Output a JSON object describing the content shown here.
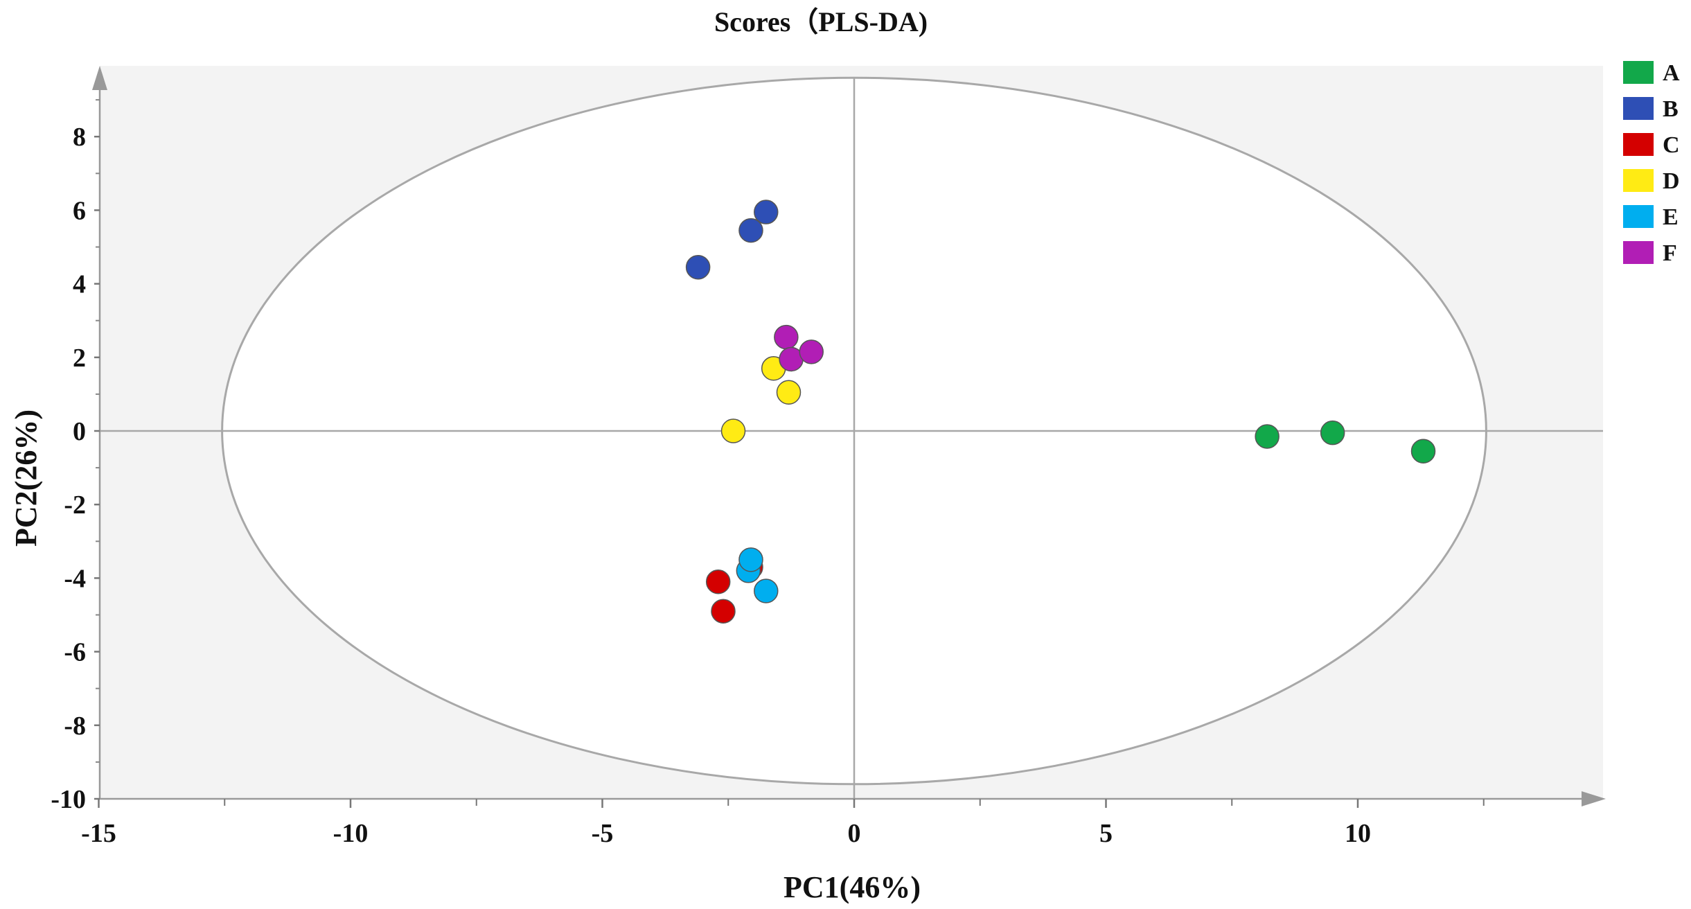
{
  "chart_data": {
    "type": "scatter",
    "title": "Scores（PLS-DA)",
    "xlabel": "PC1(46%)",
    "ylabel": "PC2(26%)",
    "xlim": [
      -15,
      15
    ],
    "ylim": [
      -10,
      10
    ],
    "x_ticks": [
      -15,
      -10,
      -5,
      0,
      5,
      10
    ],
    "y_ticks": [
      8,
      6,
      4,
      2,
      0,
      -2,
      -4,
      -6,
      -8,
      -10
    ],
    "grid": false,
    "legend_position": "right",
    "ellipse": {
      "center": [
        0,
        0
      ],
      "rx": 12.55,
      "ry": 9.6
    },
    "series": [
      {
        "name": "A",
        "color": "#12A84A",
        "points": [
          [
            8.2,
            -0.15
          ],
          [
            9.5,
            -0.05
          ],
          [
            11.3,
            -0.55
          ]
        ]
      },
      {
        "name": "B",
        "color": "#2E4FB5",
        "points": [
          [
            -3.1,
            4.45
          ],
          [
            -2.05,
            5.45
          ],
          [
            -1.75,
            5.95
          ]
        ]
      },
      {
        "name": "C",
        "color": "#D40000",
        "points": [
          [
            -2.7,
            -4.1
          ],
          [
            -2.6,
            -4.9
          ],
          [
            -2.05,
            -3.7
          ]
        ]
      },
      {
        "name": "D",
        "color": "#FFEB14",
        "points": [
          [
            -2.4,
            0.0
          ],
          [
            -1.6,
            1.7
          ],
          [
            -1.3,
            1.05
          ]
        ]
      },
      {
        "name": "E",
        "color": "#00AEEF",
        "points": [
          [
            -2.1,
            -3.8
          ],
          [
            -2.05,
            -3.5
          ],
          [
            -1.75,
            -4.35
          ]
        ]
      },
      {
        "name": "F",
        "color": "#B11EB5",
        "points": [
          [
            -1.35,
            2.55
          ],
          [
            -1.25,
            1.95
          ],
          [
            -0.85,
            2.15
          ]
        ]
      }
    ]
  }
}
